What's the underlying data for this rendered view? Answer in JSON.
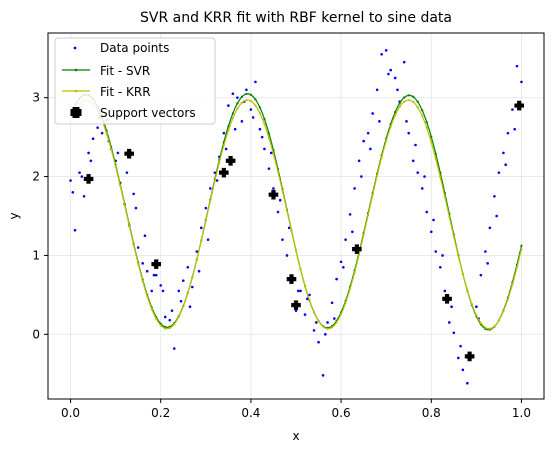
{
  "chart_data": {
    "type": "scatter",
    "title": "SVR and KRR fit with RBF kernel to sine data",
    "xlabel": "x",
    "ylabel": "y",
    "xlim": [
      -0.05,
      1.05
    ],
    "ylim": [
      -0.82,
      3.82
    ],
    "x_ticks": [
      "0.0",
      "0.2",
      "0.4",
      "0.6",
      "0.8",
      "1.0"
    ],
    "y_ticks": [
      "0",
      "1",
      "2",
      "3"
    ],
    "grid": true,
    "legend_position": "top-left",
    "series": [
      {
        "name": "Data points",
        "kind": "scatter",
        "color": "#0000ff",
        "x": [
          0.0,
          0.01,
          0.02,
          0.03,
          0.04,
          0.05,
          0.06,
          0.07,
          0.08,
          0.09,
          0.1,
          0.11,
          0.12,
          0.13,
          0.14,
          0.15,
          0.16,
          0.17,
          0.18,
          0.19,
          0.2,
          0.21,
          0.22,
          0.23,
          0.24,
          0.25,
          0.26,
          0.27,
          0.28,
          0.29,
          0.3,
          0.31,
          0.32,
          0.33,
          0.34,
          0.35,
          0.36,
          0.37,
          0.38,
          0.39,
          0.4,
          0.41,
          0.42,
          0.43,
          0.44,
          0.45,
          0.46,
          0.47,
          0.48,
          0.49,
          0.5,
          0.51,
          0.52,
          0.53,
          0.54,
          0.55,
          0.56,
          0.57,
          0.58,
          0.59,
          0.6,
          0.61,
          0.62,
          0.63,
          0.64,
          0.65,
          0.66,
          0.67,
          0.68,
          0.69,
          0.7,
          0.71,
          0.72,
          0.73,
          0.74,
          0.75,
          0.76,
          0.77,
          0.78,
          0.79,
          0.8,
          0.81,
          0.82,
          0.83,
          0.84,
          0.85,
          0.86,
          0.87,
          0.88,
          0.89,
          0.9,
          0.91,
          0.92,
          0.93,
          0.94,
          0.95,
          0.96,
          0.97,
          0.98,
          0.99,
          1.0,
          0.005,
          0.025,
          0.045,
          0.065,
          0.085,
          0.105,
          0.125,
          0.145,
          0.165,
          0.185,
          0.205,
          0.225,
          0.245,
          0.265,
          0.285,
          0.305,
          0.325,
          0.345,
          0.365,
          0.385,
          0.405,
          0.425,
          0.445,
          0.465,
          0.485,
          0.505,
          0.525,
          0.545,
          0.565,
          0.585,
          0.605,
          0.625,
          0.645,
          0.665,
          0.685,
          0.705,
          0.725,
          0.745,
          0.765,
          0.785,
          0.805,
          0.825,
          0.845,
          0.865,
          0.885,
          0.905,
          0.925,
          0.945,
          0.965,
          0.985
        ],
        "y": [
          1.95,
          1.32,
          2.05,
          1.75,
          2.3,
          2.48,
          2.62,
          2.55,
          2.72,
          2.35,
          2.2,
          1.92,
          1.65,
          1.38,
          1.78,
          1.1,
          0.9,
          0.8,
          0.55,
          0.75,
          0.62,
          0.22,
          0.18,
          -0.18,
          0.55,
          0.68,
          0.85,
          0.6,
          1.05,
          1.35,
          1.6,
          1.85,
          2.05,
          2.25,
          2.55,
          2.9,
          3.05,
          3.0,
          2.7,
          3.1,
          2.85,
          3.2,
          2.6,
          2.35,
          2.1,
          1.85,
          1.55,
          1.2,
          1.0,
          0.7,
          0.3,
          0.55,
          0.25,
          0.5,
          0.05,
          -0.1,
          -0.52,
          0.15,
          0.4,
          0.7,
          0.92,
          1.2,
          1.52,
          1.85,
          2.2,
          2.45,
          2.55,
          2.8,
          3.1,
          3.55,
          3.6,
          3.35,
          3.25,
          2.95,
          3.45,
          2.55,
          2.2,
          2.05,
          1.85,
          1.55,
          1.3,
          1.05,
          0.85,
          0.55,
          0.15,
          0.02,
          -0.3,
          -0.45,
          -0.62,
          -0.28,
          0.35,
          0.75,
          1.05,
          1.35,
          1.75,
          2.05,
          2.3,
          2.55,
          2.85,
          3.4,
          3.2,
          1.8,
          2.0,
          2.2,
          2.75,
          2.45,
          2.3,
          2.05,
          1.6,
          1.25,
          0.75,
          0.55,
          0.3,
          0.42,
          0.35,
          0.8,
          1.2,
          1.95,
          2.35,
          2.6,
          2.95,
          2.75,
          2.5,
          2.3,
          1.7,
          1.35,
          0.55,
          0.45,
          0.15,
          0.0,
          0.2,
          0.85,
          1.3,
          2.0,
          2.35,
          2.7,
          3.3,
          3.1,
          2.7,
          2.4,
          2.0,
          1.45,
          1.0,
          0.35,
          -0.15,
          -0.3,
          0.2,
          0.9,
          1.5,
          2.15,
          2.6
        ]
      },
      {
        "name": "Fit - SVR",
        "kind": "line",
        "color": "#008000",
        "fit": {
          "a": 1.55,
          "b": 1.48,
          "c": 0.95,
          "d": 0.02
        }
      },
      {
        "name": "Fit - KRR",
        "kind": "line",
        "color": "#bfbf00",
        "fit": {
          "a": 1.52,
          "b": 1.45,
          "c": 0.95,
          "d": 0.0
        }
      },
      {
        "name": "Support vectors",
        "kind": "marker",
        "color": "#000000",
        "x": [
          0.04,
          0.13,
          0.19,
          0.34,
          0.355,
          0.45,
          0.49,
          0.5,
          0.635,
          0.835,
          0.885,
          0.995
        ],
        "y": [
          1.97,
          2.29,
          0.89,
          2.05,
          2.2,
          1.77,
          0.7,
          0.37,
          1.08,
          0.45,
          -0.28,
          2.9
        ]
      }
    ]
  }
}
